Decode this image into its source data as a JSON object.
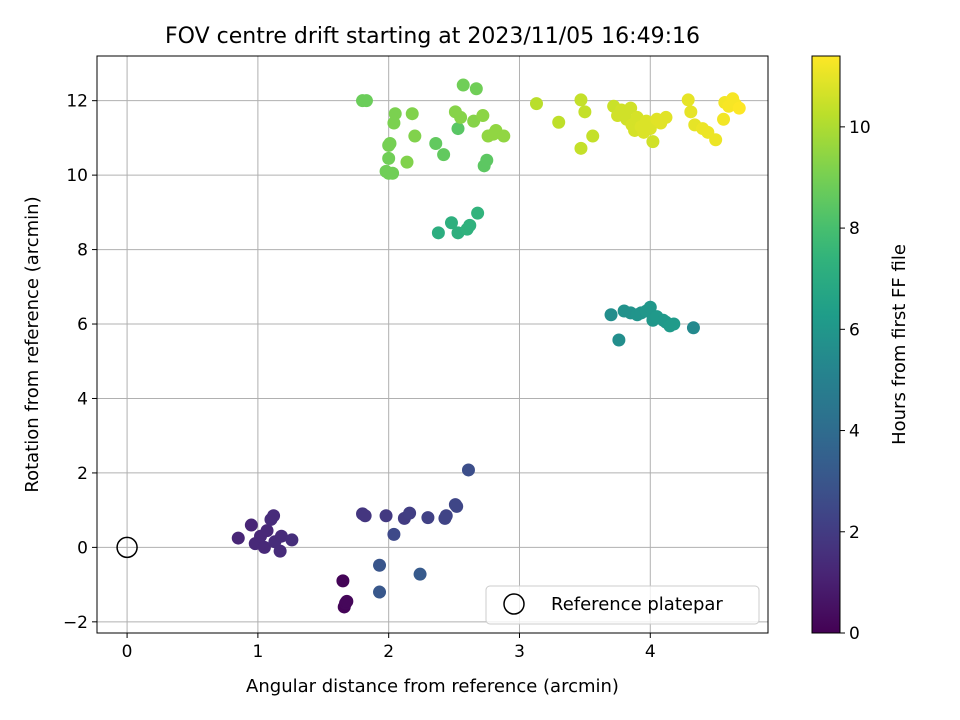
{
  "chart_data": {
    "type": "scatter",
    "title": "FOV centre drift starting at 2023/11/05 16:49:16",
    "xlabel": "Angular distance from reference (arcmin)",
    "ylabel": "Rotation from reference (arcmin)",
    "xlim": [
      -0.23,
      4.9
    ],
    "ylim": [
      -2.3,
      13.2
    ],
    "x_ticks": [
      0,
      1,
      2,
      3,
      4
    ],
    "y_ticks": [
      -2,
      0,
      2,
      4,
      6,
      8,
      10,
      12
    ],
    "grid": true,
    "legend": {
      "placement": "lower-right",
      "entries": [
        {
          "label": "Reference platepar",
          "marker": "open-circle"
        }
      ]
    },
    "colorbar": {
      "label": "Hours from first FF file",
      "range": [
        0,
        11.4
      ],
      "ticks": [
        0,
        2,
        4,
        6,
        8,
        10
      ],
      "colormap": "viridis"
    },
    "reference_point": {
      "x": 0,
      "y": 0
    },
    "series": [
      {
        "color_key": "hours",
        "points": [
          {
            "x": 1.65,
            "y": -0.9,
            "c": 0.1
          },
          {
            "x": 1.66,
            "y": -1.6,
            "c": 0.1
          },
          {
            "x": 1.67,
            "y": -1.5,
            "c": 0.2
          },
          {
            "x": 1.68,
            "y": -1.45,
            "c": 0.2
          },
          {
            "x": 0.85,
            "y": 0.25,
            "c": 1.2
          },
          {
            "x": 0.95,
            "y": 0.6,
            "c": 1.2
          },
          {
            "x": 0.98,
            "y": 0.1,
            "c": 1.3
          },
          {
            "x": 1.02,
            "y": 0.3,
            "c": 1.3
          },
          {
            "x": 1.05,
            "y": 0.0,
            "c": 1.3
          },
          {
            "x": 1.07,
            "y": 0.45,
            "c": 1.3
          },
          {
            "x": 1.1,
            "y": 0.75,
            "c": 1.4
          },
          {
            "x": 1.12,
            "y": 0.85,
            "c": 1.4
          },
          {
            "x": 1.13,
            "y": 0.15,
            "c": 1.4
          },
          {
            "x": 1.17,
            "y": -0.1,
            "c": 1.4
          },
          {
            "x": 1.18,
            "y": 0.3,
            "c": 1.4
          },
          {
            "x": 1.26,
            "y": 0.2,
            "c": 1.5
          },
          {
            "x": 1.8,
            "y": 0.9,
            "c": 1.8
          },
          {
            "x": 1.82,
            "y": 0.85,
            "c": 1.8
          },
          {
            "x": 1.98,
            "y": 0.85,
            "c": 1.9
          },
          {
            "x": 2.12,
            "y": 0.78,
            "c": 2.0
          },
          {
            "x": 2.16,
            "y": 0.92,
            "c": 2.1
          },
          {
            "x": 2.3,
            "y": 0.8,
            "c": 2.2
          },
          {
            "x": 2.43,
            "y": 0.78,
            "c": 2.3
          },
          {
            "x": 2.44,
            "y": 0.85,
            "c": 2.3
          },
          {
            "x": 2.51,
            "y": 1.15,
            "c": 2.4
          },
          {
            "x": 2.52,
            "y": 1.1,
            "c": 2.4
          },
          {
            "x": 2.04,
            "y": 0.35,
            "c": 2.5
          },
          {
            "x": 2.61,
            "y": 2.08,
            "c": 2.7
          },
          {
            "x": 1.93,
            "y": -0.48,
            "c": 3.0
          },
          {
            "x": 1.93,
            "y": -1.2,
            "c": 3.1
          },
          {
            "x": 2.24,
            "y": -0.72,
            "c": 3.2
          },
          {
            "x": 3.7,
            "y": 6.25,
            "c": 5.6
          },
          {
            "x": 3.76,
            "y": 5.57,
            "c": 5.6
          },
          {
            "x": 3.8,
            "y": 6.35,
            "c": 5.8
          },
          {
            "x": 3.85,
            "y": 6.3,
            "c": 5.8
          },
          {
            "x": 3.9,
            "y": 6.25,
            "c": 5.9
          },
          {
            "x": 3.93,
            "y": 6.3,
            "c": 5.9
          },
          {
            "x": 3.97,
            "y": 6.35,
            "c": 6.0
          },
          {
            "x": 4.0,
            "y": 6.45,
            "c": 6.0
          },
          {
            "x": 4.02,
            "y": 6.1,
            "c": 6.0
          },
          {
            "x": 4.05,
            "y": 6.2,
            "c": 6.1
          },
          {
            "x": 4.1,
            "y": 6.1,
            "c": 6.1
          },
          {
            "x": 4.12,
            "y": 6.05,
            "c": 6.1
          },
          {
            "x": 4.15,
            "y": 5.95,
            "c": 6.2
          },
          {
            "x": 4.18,
            "y": 6.0,
            "c": 6.2
          },
          {
            "x": 4.33,
            "y": 5.9,
            "c": 5.4
          },
          {
            "x": 2.38,
            "y": 8.45,
            "c": 7.1
          },
          {
            "x": 2.48,
            "y": 8.72,
            "c": 7.2
          },
          {
            "x": 2.53,
            "y": 8.45,
            "c": 7.2
          },
          {
            "x": 2.6,
            "y": 8.55,
            "c": 7.3
          },
          {
            "x": 2.62,
            "y": 8.65,
            "c": 7.3
          },
          {
            "x": 2.68,
            "y": 8.98,
            "c": 7.4
          },
          {
            "x": 1.8,
            "y": 12.0,
            "c": 8.8
          },
          {
            "x": 1.83,
            "y": 12.0,
            "c": 8.8
          },
          {
            "x": 1.98,
            "y": 10.1,
            "c": 8.9
          },
          {
            "x": 2.0,
            "y": 10.05,
            "c": 8.9
          },
          {
            "x": 2.03,
            "y": 10.05,
            "c": 8.9
          },
          {
            "x": 2.0,
            "y": 10.45,
            "c": 8.9
          },
          {
            "x": 2.0,
            "y": 10.8,
            "c": 9.0
          },
          {
            "x": 2.01,
            "y": 10.85,
            "c": 9.0
          },
          {
            "x": 2.04,
            "y": 11.4,
            "c": 9.1
          },
          {
            "x": 2.05,
            "y": 11.65,
            "c": 9.1
          },
          {
            "x": 2.14,
            "y": 10.35,
            "c": 9.2
          },
          {
            "x": 2.18,
            "y": 11.65,
            "c": 9.2
          },
          {
            "x": 2.2,
            "y": 11.05,
            "c": 9.2
          },
          {
            "x": 2.36,
            "y": 10.85,
            "c": 8.6
          },
          {
            "x": 2.42,
            "y": 10.55,
            "c": 8.6
          },
          {
            "x": 2.51,
            "y": 11.7,
            "c": 9.3
          },
          {
            "x": 2.53,
            "y": 11.25,
            "c": 8.4
          },
          {
            "x": 2.55,
            "y": 11.55,
            "c": 9.3
          },
          {
            "x": 2.57,
            "y": 12.42,
            "c": 8.9
          },
          {
            "x": 2.65,
            "y": 11.45,
            "c": 9.3
          },
          {
            "x": 2.67,
            "y": 12.32,
            "c": 8.9
          },
          {
            "x": 2.72,
            "y": 11.6,
            "c": 9.4
          },
          {
            "x": 2.73,
            "y": 10.25,
            "c": 8.5
          },
          {
            "x": 2.75,
            "y": 10.4,
            "c": 8.5
          },
          {
            "x": 2.76,
            "y": 11.05,
            "c": 9.5
          },
          {
            "x": 2.8,
            "y": 11.1,
            "c": 9.5
          },
          {
            "x": 2.82,
            "y": 11.2,
            "c": 9.5
          },
          {
            "x": 2.88,
            "y": 11.05,
            "c": 9.5
          },
          {
            "x": 3.13,
            "y": 11.92,
            "c": 10.2
          },
          {
            "x": 3.3,
            "y": 11.42,
            "c": 10.3
          },
          {
            "x": 3.47,
            "y": 10.72,
            "c": 10.4
          },
          {
            "x": 3.47,
            "y": 12.02,
            "c": 10.4
          },
          {
            "x": 3.5,
            "y": 11.7,
            "c": 10.4
          },
          {
            "x": 3.56,
            "y": 11.05,
            "c": 10.4
          },
          {
            "x": 3.72,
            "y": 11.85,
            "c": 10.5
          },
          {
            "x": 3.75,
            "y": 11.6,
            "c": 10.6
          },
          {
            "x": 3.78,
            "y": 11.75,
            "c": 10.6
          },
          {
            "x": 3.82,
            "y": 11.5,
            "c": 10.6
          },
          {
            "x": 3.85,
            "y": 11.8,
            "c": 10.6
          },
          {
            "x": 3.86,
            "y": 11.35,
            "c": 10.7
          },
          {
            "x": 3.88,
            "y": 11.2,
            "c": 10.7
          },
          {
            "x": 3.9,
            "y": 11.55,
            "c": 10.7
          },
          {
            "x": 3.93,
            "y": 11.3,
            "c": 10.8
          },
          {
            "x": 3.95,
            "y": 11.15,
            "c": 10.8
          },
          {
            "x": 3.97,
            "y": 11.45,
            "c": 10.8
          },
          {
            "x": 4.0,
            "y": 11.25,
            "c": 10.8
          },
          {
            "x": 4.02,
            "y": 10.9,
            "c": 10.6
          },
          {
            "x": 4.05,
            "y": 11.5,
            "c": 10.9
          },
          {
            "x": 4.08,
            "y": 11.4,
            "c": 10.9
          },
          {
            "x": 4.12,
            "y": 11.55,
            "c": 10.9
          },
          {
            "x": 4.29,
            "y": 12.02,
            "c": 11.0
          },
          {
            "x": 4.31,
            "y": 11.7,
            "c": 11.0
          },
          {
            "x": 4.34,
            "y": 11.35,
            "c": 11.0
          },
          {
            "x": 4.4,
            "y": 11.25,
            "c": 11.1
          },
          {
            "x": 4.44,
            "y": 11.15,
            "c": 11.1
          },
          {
            "x": 4.5,
            "y": 10.95,
            "c": 11.1
          },
          {
            "x": 4.56,
            "y": 11.5,
            "c": 11.2
          },
          {
            "x": 4.57,
            "y": 11.95,
            "c": 11.2
          },
          {
            "x": 4.6,
            "y": 11.85,
            "c": 11.3
          },
          {
            "x": 4.63,
            "y": 12.05,
            "c": 11.3
          },
          {
            "x": 4.65,
            "y": 11.9,
            "c": 11.3
          },
          {
            "x": 4.68,
            "y": 11.8,
            "c": 11.4
          }
        ]
      }
    ]
  }
}
